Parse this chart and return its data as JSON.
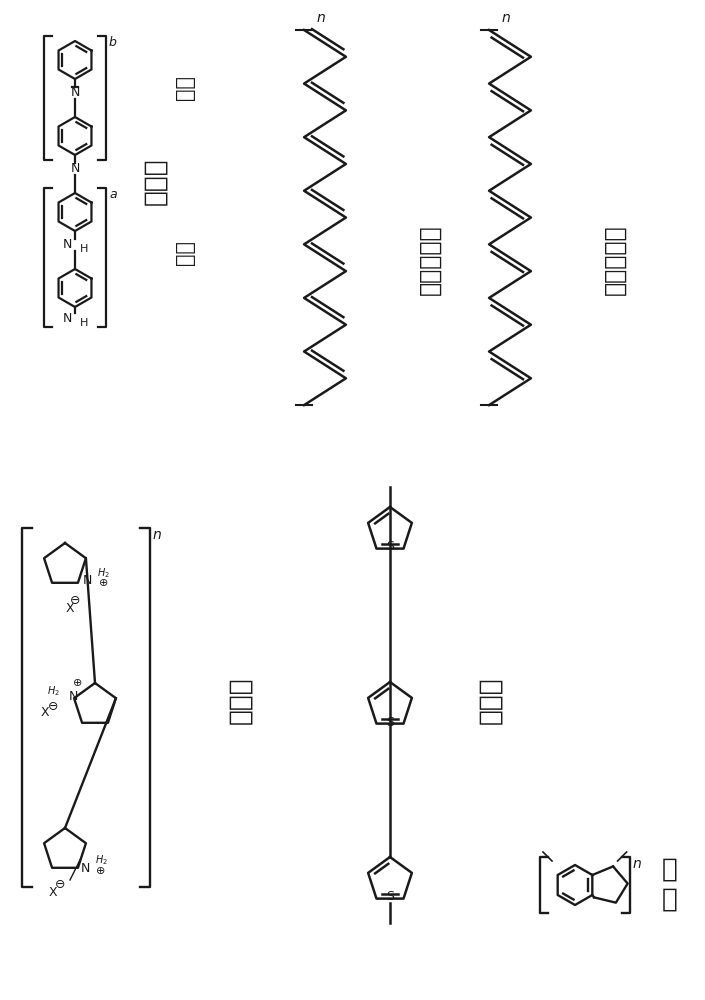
{
  "bg_color": "#ffffff",
  "line_color": "#1a1a1a",
  "text_color": "#1a1a1a",
  "labels": {
    "polyaniline": "聚苯胺",
    "quinoid": "醌型",
    "benzene_type": "苯型",
    "trans_pa": "反式聚乙炔",
    "cis_pa": "顺式聚乙炔",
    "polypyrrole": "聚比咯",
    "polythiophene": "聚噻吩",
    "polyindene": "聚茚"
  }
}
